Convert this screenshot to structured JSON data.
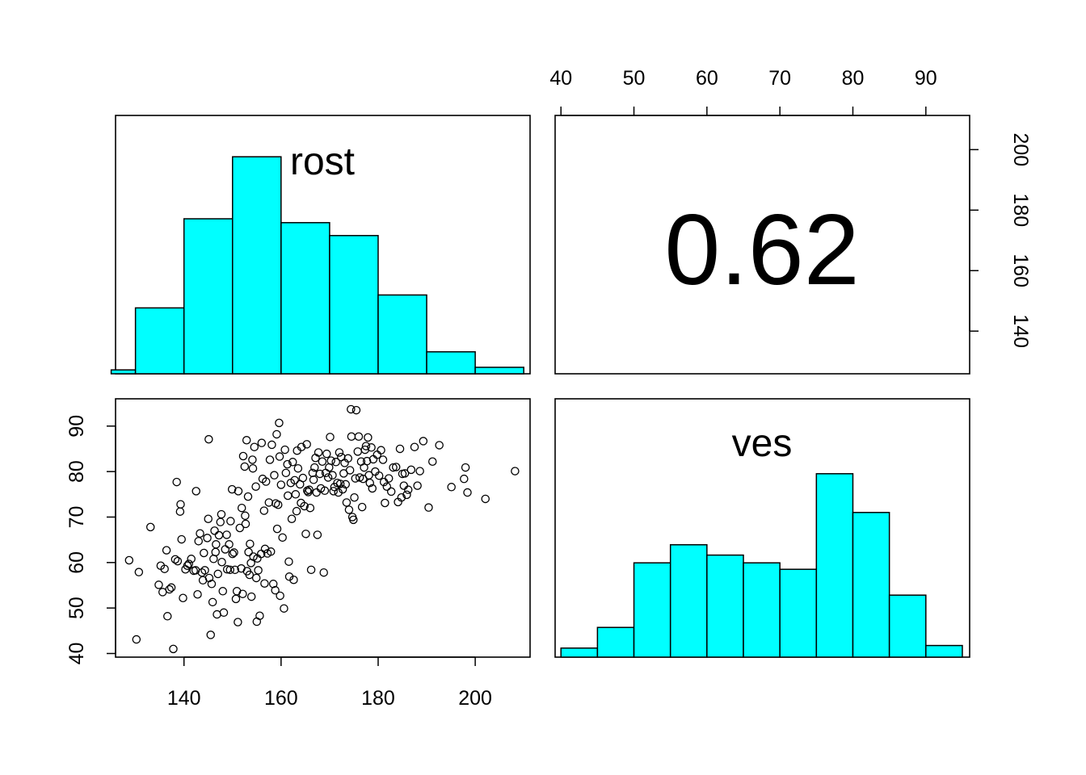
{
  "chart_data": [
    {
      "type": "pairs",
      "variables": [
        "rost",
        "ves"
      ],
      "top_axis_ticks": [
        "40",
        "50",
        "60",
        "70",
        "80",
        "90"
      ],
      "right_axis_ticks": [
        "140",
        "160",
        "180",
        "200"
      ],
      "left_axis_ticks": [
        "40",
        "50",
        "60",
        "70",
        "80",
        "90"
      ],
      "bottom_axis_ticks": [
        "140",
        "160",
        "180",
        "200"
      ],
      "correlation": "0.62"
    },
    {
      "type": "bar",
      "panel": "rost-histogram",
      "title": "rost",
      "bins": [
        [
          125,
          130
        ],
        [
          130,
          140
        ],
        [
          140,
          150
        ],
        [
          150,
          160
        ],
        [
          160,
          170
        ],
        [
          170,
          180
        ],
        [
          180,
          190
        ],
        [
          190,
          200
        ],
        [
          200,
          210
        ]
      ],
      "values": [
        0.015,
        0.255,
        0.6,
        0.84,
        0.585,
        0.535,
        0.305,
        0.085,
        0.025
      ],
      "xlim": [
        125.9,
        211.3
      ],
      "color": "#00ffff"
    },
    {
      "type": "scatter",
      "panel": "rost-vs-ves",
      "xlabel": "",
      "ylabel": "",
      "xlim": [
        125.9,
        211.3
      ],
      "ylim": [
        39.2,
        96.0
      ],
      "points": [
        [
          128.7,
          60.5
        ],
        [
          130.2,
          43.1
        ],
        [
          130.7,
          57.9
        ],
        [
          133.1,
          67.8
        ],
        [
          134.8,
          55.1
        ],
        [
          135.2,
          59.3
        ],
        [
          135.6,
          53.5
        ],
        [
          136.0,
          58.6
        ],
        [
          136.4,
          62.7
        ],
        [
          136.6,
          48.2
        ],
        [
          137.0,
          54.1
        ],
        [
          137.4,
          54.5
        ],
        [
          137.8,
          41.0
        ],
        [
          138.2,
          60.7
        ],
        [
          138.5,
          77.7
        ],
        [
          138.7,
          60.3
        ],
        [
          139.2,
          71.2
        ],
        [
          139.3,
          72.8
        ],
        [
          139.5,
          65.1
        ],
        [
          139.8,
          52.2
        ],
        [
          140.3,
          58.5
        ],
        [
          140.7,
          59.3
        ],
        [
          141.0,
          59.7
        ],
        [
          141.5,
          60.8
        ],
        [
          142.0,
          58.2
        ],
        [
          142.4,
          58.3
        ],
        [
          142.5,
          75.7
        ],
        [
          142.8,
          53.0
        ],
        [
          143.0,
          64.7
        ],
        [
          143.3,
          66.4
        ],
        [
          143.7,
          57.8
        ],
        [
          143.9,
          56.1
        ],
        [
          144.1,
          62.1
        ],
        [
          144.3,
          58.3
        ],
        [
          144.8,
          65.4
        ],
        [
          145.0,
          69.6
        ],
        [
          145.1,
          87.1
        ],
        [
          145.2,
          56.6
        ],
        [
          145.5,
          44.1
        ],
        [
          145.7,
          55.3
        ],
        [
          145.9,
          51.3
        ],
        [
          146.1,
          60.8
        ],
        [
          146.3,
          67.0
        ],
        [
          146.5,
          62.3
        ],
        [
          146.6,
          64.0
        ],
        [
          146.8,
          48.6
        ],
        [
          147.0,
          57.5
        ],
        [
          147.2,
          66.0
        ],
        [
          147.5,
          68.9
        ],
        [
          147.7,
          70.6
        ],
        [
          147.8,
          60.1
        ],
        [
          148.0,
          53.7
        ],
        [
          148.2,
          49.0
        ],
        [
          148.5,
          62.9
        ],
        [
          148.8,
          66.1
        ],
        [
          148.9,
          58.5
        ],
        [
          149.3,
          64.0
        ],
        [
          149.5,
          58.4
        ],
        [
          149.6,
          69.1
        ],
        [
          149.9,
          76.1
        ],
        [
          150.0,
          61.9
        ],
        [
          150.3,
          62.2
        ],
        [
          150.5,
          58.4
        ],
        [
          150.7,
          52.0
        ],
        [
          150.9,
          53.7
        ],
        [
          151.1,
          46.9
        ],
        [
          151.2,
          75.7
        ],
        [
          151.5,
          67.6
        ],
        [
          151.8,
          58.7
        ],
        [
          151.9,
          72.0
        ],
        [
          152.1,
          53.1
        ],
        [
          152.2,
          83.4
        ],
        [
          152.5,
          81.1
        ],
        [
          152.6,
          70.3
        ],
        [
          152.7,
          68.5
        ],
        [
          152.9,
          86.9
        ],
        [
          153.0,
          58.1
        ],
        [
          153.2,
          74.5
        ],
        [
          153.3,
          62.3
        ],
        [
          153.5,
          57.3
        ],
        [
          153.6,
          64.1
        ],
        [
          153.8,
          59.9
        ],
        [
          153.9,
          52.5
        ],
        [
          154.1,
          82.6
        ],
        [
          154.2,
          80.7
        ],
        [
          154.3,
          61.3
        ],
        [
          154.5,
          85.4
        ],
        [
          154.8,
          76.7
        ],
        [
          154.9,
          56.6
        ],
        [
          155.0,
          47.0
        ],
        [
          155.1,
          60.9
        ],
        [
          155.3,
          58.3
        ],
        [
          155.6,
          48.3
        ],
        [
          155.9,
          61.9
        ],
        [
          156.0,
          86.3
        ],
        [
          156.2,
          78.4
        ],
        [
          156.5,
          71.4
        ],
        [
          156.6,
          55.4
        ],
        [
          156.7,
          63.0
        ],
        [
          156.9,
          77.8
        ],
        [
          157.2,
          62.0
        ],
        [
          157.5,
          73.2
        ],
        [
          157.7,
          82.6
        ],
        [
          157.9,
          62.4
        ],
        [
          158.1,
          85.9
        ],
        [
          158.4,
          55.3
        ],
        [
          158.6,
          79.2
        ],
        [
          158.8,
          53.9
        ],
        [
          158.9,
          73.0
        ],
        [
          159.1,
          88.2
        ],
        [
          159.2,
          67.4
        ],
        [
          159.4,
          72.7
        ],
        [
          159.6,
          90.7
        ],
        [
          159.7,
          83.3
        ],
        [
          159.8,
          52.7
        ],
        [
          160.0,
          77.1
        ],
        [
          160.3,
          65.5
        ],
        [
          160.6,
          49.9
        ],
        [
          160.8,
          84.8
        ],
        [
          161.0,
          79.7
        ],
        [
          161.3,
          81.6
        ],
        [
          161.4,
          74.7
        ],
        [
          161.6,
          60.2
        ],
        [
          161.7,
          56.9
        ],
        [
          162.0,
          77.5
        ],
        [
          162.2,
          69.6
        ],
        [
          162.4,
          82.1
        ],
        [
          162.6,
          56.2
        ],
        [
          162.8,
          78.1
        ],
        [
          163.0,
          75.0
        ],
        [
          163.2,
          71.3
        ],
        [
          163.3,
          84.6
        ],
        [
          163.5,
          80.7
        ],
        [
          163.9,
          77.2
        ],
        [
          164.1,
          73.1
        ],
        [
          164.2,
          85.4
        ],
        [
          164.5,
          78.6
        ],
        [
          164.8,
          72.4
        ],
        [
          165.1,
          66.3
        ],
        [
          165.3,
          86.0
        ],
        [
          165.4,
          75.8
        ],
        [
          165.6,
          75.5
        ],
        [
          165.8,
          76.0
        ],
        [
          166.0,
          72.0
        ],
        [
          166.2,
          58.4
        ],
        [
          166.5,
          79.7
        ],
        [
          166.7,
          78.2
        ],
        [
          166.9,
          80.9
        ],
        [
          167.1,
          83.0
        ],
        [
          167.3,
          75.4
        ],
        [
          167.5,
          66.1
        ],
        [
          167.7,
          84.2
        ],
        [
          168.0,
          79.5
        ],
        [
          168.2,
          76.3
        ],
        [
          168.5,
          82.2
        ],
        [
          168.8,
          57.8
        ],
        [
          169.0,
          75.8
        ],
        [
          169.2,
          79.7
        ],
        [
          169.4,
          83.9
        ],
        [
          169.7,
          78.7
        ],
        [
          169.9,
          80.9
        ],
        [
          170.1,
          87.6
        ],
        [
          170.3,
          82.4
        ],
        [
          170.6,
          79.2
        ],
        [
          170.8,
          75.7
        ],
        [
          171.0,
          76.6
        ],
        [
          171.3,
          82.1
        ],
        [
          171.6,
          77.5
        ],
        [
          171.8,
          75.4
        ],
        [
          172.0,
          84.2
        ],
        [
          172.2,
          77.3
        ],
        [
          172.4,
          83.2
        ],
        [
          172.7,
          76.1
        ],
        [
          172.9,
          79.6
        ],
        [
          173.1,
          81.9
        ],
        [
          173.3,
          77.2
        ],
        [
          173.5,
          73.2
        ],
        [
          173.8,
          82.9
        ],
        [
          174.0,
          71.6
        ],
        [
          174.2,
          80.3
        ],
        [
          174.4,
          93.7
        ],
        [
          174.5,
          87.7
        ],
        [
          174.7,
          70.0
        ],
        [
          174.9,
          69.4
        ],
        [
          175.1,
          74.3
        ],
        [
          175.3,
          78.5
        ],
        [
          175.5,
          93.5
        ],
        [
          175.8,
          84.4
        ],
        [
          176.0,
          87.7
        ],
        [
          176.2,
          78.7
        ],
        [
          176.5,
          82.2
        ],
        [
          176.7,
          72.2
        ],
        [
          176.9,
          78.4
        ],
        [
          177.1,
          80.9
        ],
        [
          177.3,
          84.8
        ],
        [
          177.5,
          85.6
        ],
        [
          177.7,
          82.3
        ],
        [
          177.9,
          87.5
        ],
        [
          178.1,
          79.2
        ],
        [
          178.3,
          77.5
        ],
        [
          178.6,
          85.3
        ],
        [
          178.8,
          76.3
        ],
        [
          179.0,
          82.7
        ],
        [
          179.4,
          80.0
        ],
        [
          179.8,
          83.7
        ],
        [
          180.2,
          79.1
        ],
        [
          180.6,
          84.7
        ],
        [
          181.0,
          82.6
        ],
        [
          181.2,
          77.7
        ],
        [
          181.4,
          73.1
        ],
        [
          181.8,
          76.7
        ],
        [
          182.2,
          78.5
        ],
        [
          182.7,
          75.6
        ],
        [
          183.1,
          80.9
        ],
        [
          183.7,
          81.0
        ],
        [
          184.1,
          73.3
        ],
        [
          184.5,
          85.0
        ],
        [
          184.8,
          74.3
        ],
        [
          185.0,
          79.5
        ],
        [
          185.3,
          76.9
        ],
        [
          185.5,
          79.6
        ],
        [
          185.9,
          74.9
        ],
        [
          186.2,
          76.0
        ],
        [
          186.8,
          80.4
        ],
        [
          187.5,
          85.4
        ],
        [
          188.1,
          76.9
        ],
        [
          188.6,
          80.1
        ],
        [
          189.3,
          86.7
        ],
        [
          190.4,
          72.1
        ],
        [
          191.2,
          82.2
        ],
        [
          192.6,
          85.8
        ],
        [
          195.1,
          76.6
        ],
        [
          197.7,
          78.4
        ],
        [
          198.0,
          80.9
        ],
        [
          198.4,
          75.4
        ],
        [
          202.1,
          74.0
        ],
        [
          208.2,
          80.1
        ]
      ]
    },
    {
      "type": "bar",
      "panel": "ves-histogram",
      "title": "ves",
      "bins": [
        [
          40,
          45
        ],
        [
          45,
          50
        ],
        [
          50,
          55
        ],
        [
          55,
          60
        ],
        [
          60,
          65
        ],
        [
          65,
          70
        ],
        [
          70,
          75
        ],
        [
          75,
          80
        ],
        [
          80,
          85
        ],
        [
          85,
          90
        ],
        [
          90,
          95
        ]
      ],
      "values": [
        0.035,
        0.115,
        0.365,
        0.435,
        0.395,
        0.365,
        0.34,
        0.71,
        0.56,
        0.24,
        0.045
      ],
      "xlim": [
        39.2,
        96.0
      ],
      "color": "#00ffff"
    }
  ]
}
